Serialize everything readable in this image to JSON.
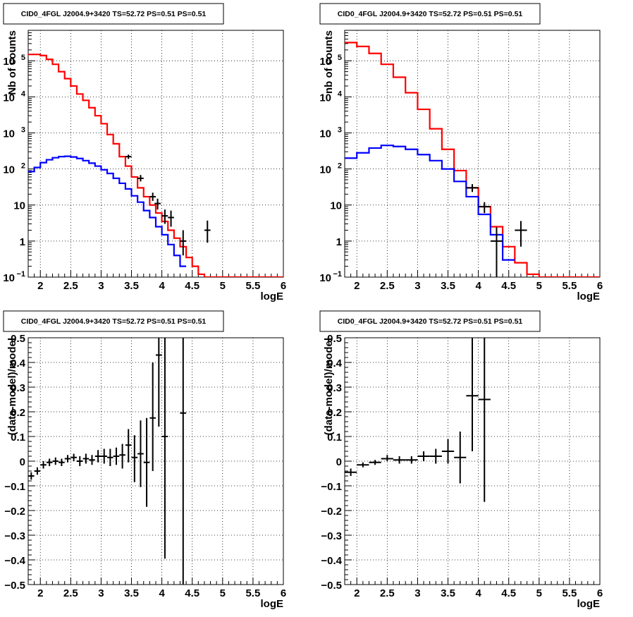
{
  "chart_data": [
    {
      "type": "line",
      "panel": "top-left",
      "title": "CID0_4FGL J2004.9+3420 TS=52.72 PS=0.51 PS=0.51",
      "xlabel": "logE",
      "ylabel": "Nb of counts",
      "xlim": [
        1.8,
        6
      ],
      "ylim": [
        0.1,
        700000
      ],
      "yscale": "log",
      "grid": true,
      "x_ticks": [
        "2",
        "2.5",
        "3",
        "3.5",
        "4",
        "4.5",
        "5",
        "5.5",
        "6"
      ],
      "y_ticks": [
        {
          "v": 0.1,
          "label": "10",
          "exp": "−1"
        },
        {
          "v": 1,
          "label": "1",
          "exp": ""
        },
        {
          "v": 10,
          "label": "10",
          "exp": ""
        },
        {
          "v": 100,
          "label": "10",
          "exp": "2"
        },
        {
          "v": 1000,
          "label": "10",
          "exp": "3"
        },
        {
          "v": 10000,
          "label": "10",
          "exp": "4"
        },
        {
          "v": 100000,
          "label": "10",
          "exp": "5"
        }
      ],
      "series": [
        {
          "color": "#ff0000",
          "kind": "step",
          "edges": [
            1.8,
            1.9,
            2.0,
            2.1,
            2.2,
            2.3,
            2.4,
            2.5,
            2.6,
            2.7,
            2.8,
            2.9,
            3.0,
            3.1,
            3.2,
            3.3,
            3.4,
            3.5,
            3.6,
            3.7,
            3.8,
            3.9,
            4.0,
            4.1,
            4.2,
            4.3,
            4.4,
            4.5,
            4.6,
            4.7,
            4.8,
            4.9,
            5.0,
            5.1,
            5.2,
            5.3,
            5.4,
            5.5,
            5.6,
            5.7,
            5.8,
            5.9,
            6.0
          ],
          "values": [
            150000,
            150000,
            140000,
            110000,
            80000,
            50000,
            32000,
            20000,
            12000,
            8000,
            5000,
            3000,
            1800,
            900,
            500,
            220,
            120,
            60,
            30,
            17,
            10,
            6,
            3.5,
            2,
            1.2,
            0.7,
            0.35,
            0.2,
            0.12,
            0.1,
            0.1,
            0.1,
            0.1,
            0.1,
            0.1,
            0.1,
            0.1,
            0.1,
            0.1,
            0.1,
            0.1,
            0.1
          ]
        },
        {
          "color": "#0000ff",
          "kind": "step",
          "edges": [
            1.8,
            1.9,
            2.0,
            2.1,
            2.2,
            2.3,
            2.4,
            2.5,
            2.6,
            2.7,
            2.8,
            2.9,
            3.0,
            3.1,
            3.2,
            3.3,
            3.4,
            3.5,
            3.6,
            3.7,
            3.8,
            3.9,
            4.0,
            4.1,
            4.2,
            4.3,
            4.4
          ],
          "values": [
            85,
            110,
            150,
            180,
            205,
            220,
            225,
            215,
            195,
            170,
            145,
            120,
            95,
            75,
            55,
            40,
            28,
            18,
            12,
            7,
            4.5,
            2.5,
            1.5,
            0.8,
            0.4,
            0.2
          ]
        }
      ],
      "points": [
        {
          "x": 3.45,
          "y": 220,
          "xerr": 0.05,
          "ylo": 190,
          "yhi": 250
        },
        {
          "x": 3.65,
          "y": 55,
          "xerr": 0.05,
          "ylo": 45,
          "yhi": 68
        },
        {
          "x": 3.85,
          "y": 17,
          "xerr": 0.05,
          "ylo": 13,
          "yhi": 22
        },
        {
          "x": 3.93,
          "y": 11,
          "xerr": 0.05,
          "ylo": 7.5,
          "yhi": 15
        },
        {
          "x": 4.05,
          "y": 5,
          "xerr": 0.05,
          "ylo": 3,
          "yhi": 7.5
        },
        {
          "x": 4.15,
          "y": 4.5,
          "xerr": 0.05,
          "ylo": 2.5,
          "yhi": 7
        },
        {
          "x": 4.35,
          "y": 1,
          "xerr": 0.05,
          "ylo": 0.4,
          "yhi": 2
        },
        {
          "x": 4.75,
          "y": 2,
          "xerr": 0.05,
          "ylo": 0.9,
          "yhi": 3.7
        }
      ]
    },
    {
      "type": "line",
      "panel": "top-right",
      "title": "CID0_4FGL J2004.9+3420 TS=52.72 PS=0.51 PS=0.51",
      "xlabel": "logE",
      "ylabel": "nb of counts",
      "xlim": [
        1.8,
        6
      ],
      "ylim": [
        0.1,
        700000
      ],
      "yscale": "log",
      "grid": true,
      "x_ticks": [
        "2",
        "2.5",
        "3",
        "3.5",
        "4",
        "4.5",
        "5",
        "5.5",
        "6"
      ],
      "y_ticks": [
        {
          "v": 0.1,
          "label": "10",
          "exp": "−1"
        },
        {
          "v": 1,
          "label": "1",
          "exp": ""
        },
        {
          "v": 10,
          "label": "10",
          "exp": ""
        },
        {
          "v": 100,
          "label": "10",
          "exp": "2"
        },
        {
          "v": 1000,
          "label": "10",
          "exp": "3"
        },
        {
          "v": 10000,
          "label": "10",
          "exp": "4"
        },
        {
          "v": 100000,
          "label": "10",
          "exp": "5"
        }
      ],
      "series": [
        {
          "color": "#ff0000",
          "kind": "step",
          "edges": [
            1.8,
            2.0,
            2.2,
            2.4,
            2.6,
            2.8,
            3.0,
            3.2,
            3.4,
            3.6,
            3.8,
            4.0,
            4.2,
            4.4,
            4.6,
            4.8,
            5.0,
            5.2,
            5.4,
            5.6,
            5.8,
            6.0
          ],
          "values": [
            320000,
            250000,
            160000,
            80000,
            35000,
            13000,
            4500,
            1300,
            350,
            90,
            30,
            9,
            2.5,
            0.7,
            0.25,
            0.12,
            0.1,
            0.1,
            0.1,
            0.1,
            0.1
          ]
        },
        {
          "color": "#0000ff",
          "kind": "step",
          "edges": [
            1.8,
            2.0,
            2.2,
            2.4,
            2.6,
            2.8,
            3.0,
            3.2,
            3.4,
            3.6,
            3.8,
            4.0,
            4.2,
            4.4,
            4.6
          ],
          "values": [
            200,
            280,
            380,
            450,
            420,
            350,
            250,
            170,
            100,
            45,
            17,
            5.5,
            1.5,
            0.3
          ]
        }
      ],
      "points": [
        {
          "x": 3.9,
          "y": 30,
          "xerr": 0.1,
          "ylo": 23,
          "yhi": 38
        },
        {
          "x": 4.1,
          "y": 9,
          "xerr": 0.1,
          "ylo": 6,
          "yhi": 12
        },
        {
          "x": 4.3,
          "y": 1,
          "xerr": 0.1,
          "ylo": 0.1,
          "yhi": 2.4
        },
        {
          "x": 4.7,
          "y": 2,
          "xerr": 0.1,
          "ylo": 0.7,
          "yhi": 3.6
        }
      ]
    },
    {
      "type": "scatter",
      "panel": "bottom-left",
      "title": "CID0_4FGL J2004.9+3420 TS=52.72 PS=0.51 PS=0.51",
      "xlabel": "logE",
      "ylabel": "(data-model)/model",
      "xlim": [
        1.8,
        6
      ],
      "ylim": [
        -0.5,
        0.5
      ],
      "yscale": "linear",
      "grid": true,
      "x_ticks": [
        "2",
        "2.5",
        "3",
        "3.5",
        "4",
        "4.5",
        "5",
        "5.5",
        "6"
      ],
      "y_ticks": [
        {
          "v": -0.5,
          "label": "−0.5",
          "exp": ""
        },
        {
          "v": -0.4,
          "label": "−0.4",
          "exp": ""
        },
        {
          "v": -0.3,
          "label": "−0.3",
          "exp": ""
        },
        {
          "v": -0.2,
          "label": "−0.2",
          "exp": ""
        },
        {
          "v": -0.1,
          "label": "−0.1",
          "exp": ""
        },
        {
          "v": 0,
          "label": "0",
          "exp": ""
        },
        {
          "v": 0.1,
          "label": "0.1",
          "exp": ""
        },
        {
          "v": 0.2,
          "label": "0.2",
          "exp": ""
        },
        {
          "v": 0.3,
          "label": "0.3",
          "exp": ""
        },
        {
          "v": 0.4,
          "label": "0.4",
          "exp": ""
        },
        {
          "v": 0.5,
          "label": "0.5",
          "exp": ""
        }
      ],
      "series": [],
      "points": [
        {
          "x": 1.85,
          "y": -0.06,
          "xerr": 0.05,
          "ylo": -0.075,
          "yhi": -0.045
        },
        {
          "x": 1.95,
          "y": -0.04,
          "xerr": 0.05,
          "ylo": -0.055,
          "yhi": -0.025
        },
        {
          "x": 2.05,
          "y": -0.015,
          "xerr": 0.05,
          "ylo": -0.03,
          "yhi": 0.0
        },
        {
          "x": 2.15,
          "y": -0.005,
          "xerr": 0.05,
          "ylo": -0.02,
          "yhi": 0.01
        },
        {
          "x": 2.25,
          "y": 0.0,
          "xerr": 0.05,
          "ylo": -0.015,
          "yhi": 0.015
        },
        {
          "x": 2.35,
          "y": -0.005,
          "xerr": 0.05,
          "ylo": -0.02,
          "yhi": 0.01
        },
        {
          "x": 2.45,
          "y": 0.01,
          "xerr": 0.05,
          "ylo": -0.005,
          "yhi": 0.025
        },
        {
          "x": 2.55,
          "y": 0.015,
          "xerr": 0.05,
          "ylo": 0.0,
          "yhi": 0.03
        },
        {
          "x": 2.65,
          "y": 0.0,
          "xerr": 0.05,
          "ylo": -0.02,
          "yhi": 0.02
        },
        {
          "x": 2.75,
          "y": 0.01,
          "xerr": 0.05,
          "ylo": -0.01,
          "yhi": 0.03
        },
        {
          "x": 2.85,
          "y": 0.005,
          "xerr": 0.05,
          "ylo": -0.015,
          "yhi": 0.025
        },
        {
          "x": 2.95,
          "y": 0.02,
          "xerr": 0.05,
          "ylo": -0.005,
          "yhi": 0.045
        },
        {
          "x": 3.05,
          "y": 0.02,
          "xerr": 0.05,
          "ylo": -0.01,
          "yhi": 0.05
        },
        {
          "x": 3.15,
          "y": 0.015,
          "xerr": 0.05,
          "ylo": -0.02,
          "yhi": 0.05
        },
        {
          "x": 3.25,
          "y": 0.02,
          "xerr": 0.05,
          "ylo": -0.015,
          "yhi": 0.055
        },
        {
          "x": 3.35,
          "y": 0.025,
          "xerr": 0.05,
          "ylo": -0.03,
          "yhi": 0.07
        },
        {
          "x": 3.45,
          "y": 0.065,
          "xerr": 0.05,
          "ylo": -0.005,
          "yhi": 0.13
        },
        {
          "x": 3.55,
          "y": 0.015,
          "xerr": 0.05,
          "ylo": -0.085,
          "yhi": 0.105
        },
        {
          "x": 3.65,
          "y": 0.03,
          "xerr": 0.05,
          "ylo": -0.105,
          "yhi": 0.165
        },
        {
          "x": 3.75,
          "y": -0.005,
          "xerr": 0.05,
          "ylo": -0.185,
          "yhi": 0.175
        },
        {
          "x": 3.85,
          "y": 0.175,
          "xerr": 0.05,
          "ylo": -0.04,
          "yhi": 0.4
        },
        {
          "x": 3.95,
          "y": 0.43,
          "xerr": 0.05,
          "ylo": 0.14,
          "yhi": 0.5
        },
        {
          "x": 4.05,
          "y": 0.1,
          "xerr": 0.05,
          "ylo": -0.395,
          "yhi": 0.5
        },
        {
          "x": 4.35,
          "y": 0.195,
          "xerr": 0.05,
          "ylo": -0.5,
          "yhi": 0.5
        }
      ]
    },
    {
      "type": "scatter",
      "panel": "bottom-right",
      "title": "CID0_4FGL J2004.9+3420 TS=52.72 PS=0.51 PS=0.51",
      "xlabel": "logE",
      "ylabel": "(data-model)/model",
      "xlim": [
        1.8,
        6
      ],
      "ylim": [
        -0.5,
        0.5
      ],
      "yscale": "linear",
      "grid": true,
      "x_ticks": [
        "2",
        "2.5",
        "3",
        "3.5",
        "4",
        "4.5",
        "5",
        "5.5",
        "6"
      ],
      "y_ticks": [
        {
          "v": -0.5,
          "label": "−0.5",
          "exp": ""
        },
        {
          "v": -0.4,
          "label": "−0.4",
          "exp": ""
        },
        {
          "v": -0.3,
          "label": "−0.3",
          "exp": ""
        },
        {
          "v": -0.2,
          "label": "−0.2",
          "exp": ""
        },
        {
          "v": -0.1,
          "label": "−0.1",
          "exp": ""
        },
        {
          "v": 0,
          "label": "0",
          "exp": ""
        },
        {
          "v": 0.1,
          "label": "0.1",
          "exp": ""
        },
        {
          "v": 0.2,
          "label": "0.2",
          "exp": ""
        },
        {
          "v": 0.3,
          "label": "0.3",
          "exp": ""
        },
        {
          "v": 0.4,
          "label": "0.4",
          "exp": ""
        },
        {
          "v": 0.5,
          "label": "0.5",
          "exp": ""
        }
      ],
      "series": [],
      "points": [
        {
          "x": 1.9,
          "y": -0.045,
          "xerr": 0.1,
          "ylo": -0.06,
          "yhi": -0.03
        },
        {
          "x": 2.1,
          "y": -0.015,
          "xerr": 0.1,
          "ylo": -0.025,
          "yhi": -0.005
        },
        {
          "x": 2.3,
          "y": -0.005,
          "xerr": 0.1,
          "ylo": -0.015,
          "yhi": 0.005
        },
        {
          "x": 2.5,
          "y": 0.01,
          "xerr": 0.1,
          "ylo": 0.0,
          "yhi": 0.025
        },
        {
          "x": 2.7,
          "y": 0.005,
          "xerr": 0.1,
          "ylo": -0.01,
          "yhi": 0.02
        },
        {
          "x": 2.9,
          "y": 0.005,
          "xerr": 0.1,
          "ylo": -0.01,
          "yhi": 0.02
        },
        {
          "x": 3.1,
          "y": 0.02,
          "xerr": 0.1,
          "ylo": 0.0,
          "yhi": 0.04
        },
        {
          "x": 3.3,
          "y": 0.02,
          "xerr": 0.1,
          "ylo": -0.01,
          "yhi": 0.05
        },
        {
          "x": 3.5,
          "y": 0.04,
          "xerr": 0.1,
          "ylo": -0.01,
          "yhi": 0.09
        },
        {
          "x": 3.7,
          "y": 0.015,
          "xerr": 0.1,
          "ylo": -0.09,
          "yhi": 0.12
        },
        {
          "x": 3.9,
          "y": 0.265,
          "xerr": 0.1,
          "ylo": 0.04,
          "yhi": 0.5
        },
        {
          "x": 4.1,
          "y": 0.25,
          "xerr": 0.1,
          "ylo": -0.165,
          "yhi": 0.5
        }
      ]
    }
  ]
}
